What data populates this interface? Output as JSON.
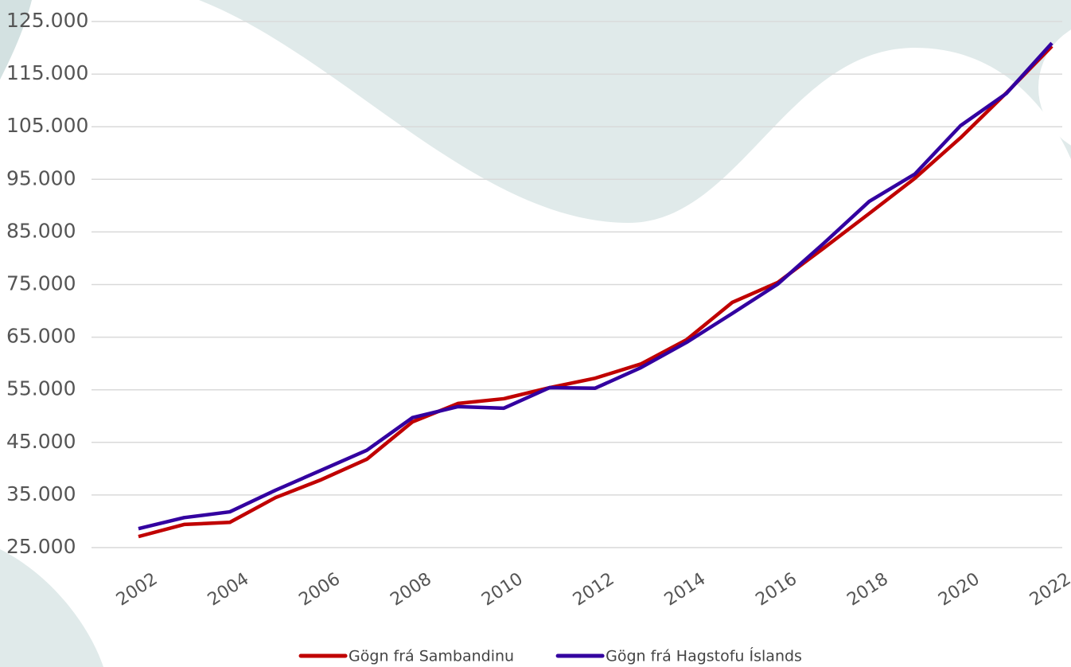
{
  "chart_data": {
    "type": "line",
    "x": [
      2002,
      2003,
      2004,
      2005,
      2006,
      2007,
      2008,
      2009,
      2010,
      2011,
      2012,
      2013,
      2014,
      2015,
      2016,
      2017,
      2018,
      2019,
      2020,
      2021,
      2022
    ],
    "series": [
      {
        "name": "Gögn frá Sambandinu",
        "color": "#c00000",
        "values": [
          27100,
          29400,
          29800,
          34500,
          37900,
          41800,
          48900,
          52400,
          53300,
          55400,
          57200,
          59900,
          64500,
          71600,
          75400,
          81900,
          88500,
          95200,
          102900,
          111400,
          120300
        ]
      },
      {
        "name": "Gögn frá Hagstofu Íslands",
        "color": "#3300a0",
        "values": [
          28600,
          30700,
          31800,
          35900,
          39700,
          43500,
          49700,
          51800,
          51500,
          55400,
          55300,
          59200,
          64000,
          69500,
          75100,
          82800,
          90800,
          96000,
          105200,
          111300,
          120900
        ]
      }
    ],
    "xlim": [
      2002,
      2022
    ],
    "xticks": [
      2002,
      2004,
      2006,
      2008,
      2010,
      2012,
      2014,
      2016,
      2018,
      2020,
      2022
    ],
    "ylim": [
      25000,
      125000
    ],
    "yticks": [
      {
        "value": 25000,
        "label": "25.000"
      },
      {
        "value": 35000,
        "label": "35.000"
      },
      {
        "value": 45000,
        "label": "45.000"
      },
      {
        "value": 55000,
        "label": "55.000"
      },
      {
        "value": 65000,
        "label": "65.000"
      },
      {
        "value": 75000,
        "label": "75.000"
      },
      {
        "value": 85000,
        "label": "85.000"
      },
      {
        "value": 95000,
        "label": "95.000"
      },
      {
        "value": 105000,
        "label": "105.000"
      },
      {
        "value": 115000,
        "label": "115.000"
      },
      {
        "value": 125000,
        "label": "125.000"
      }
    ],
    "grid": true,
    "legend": "bottom"
  }
}
